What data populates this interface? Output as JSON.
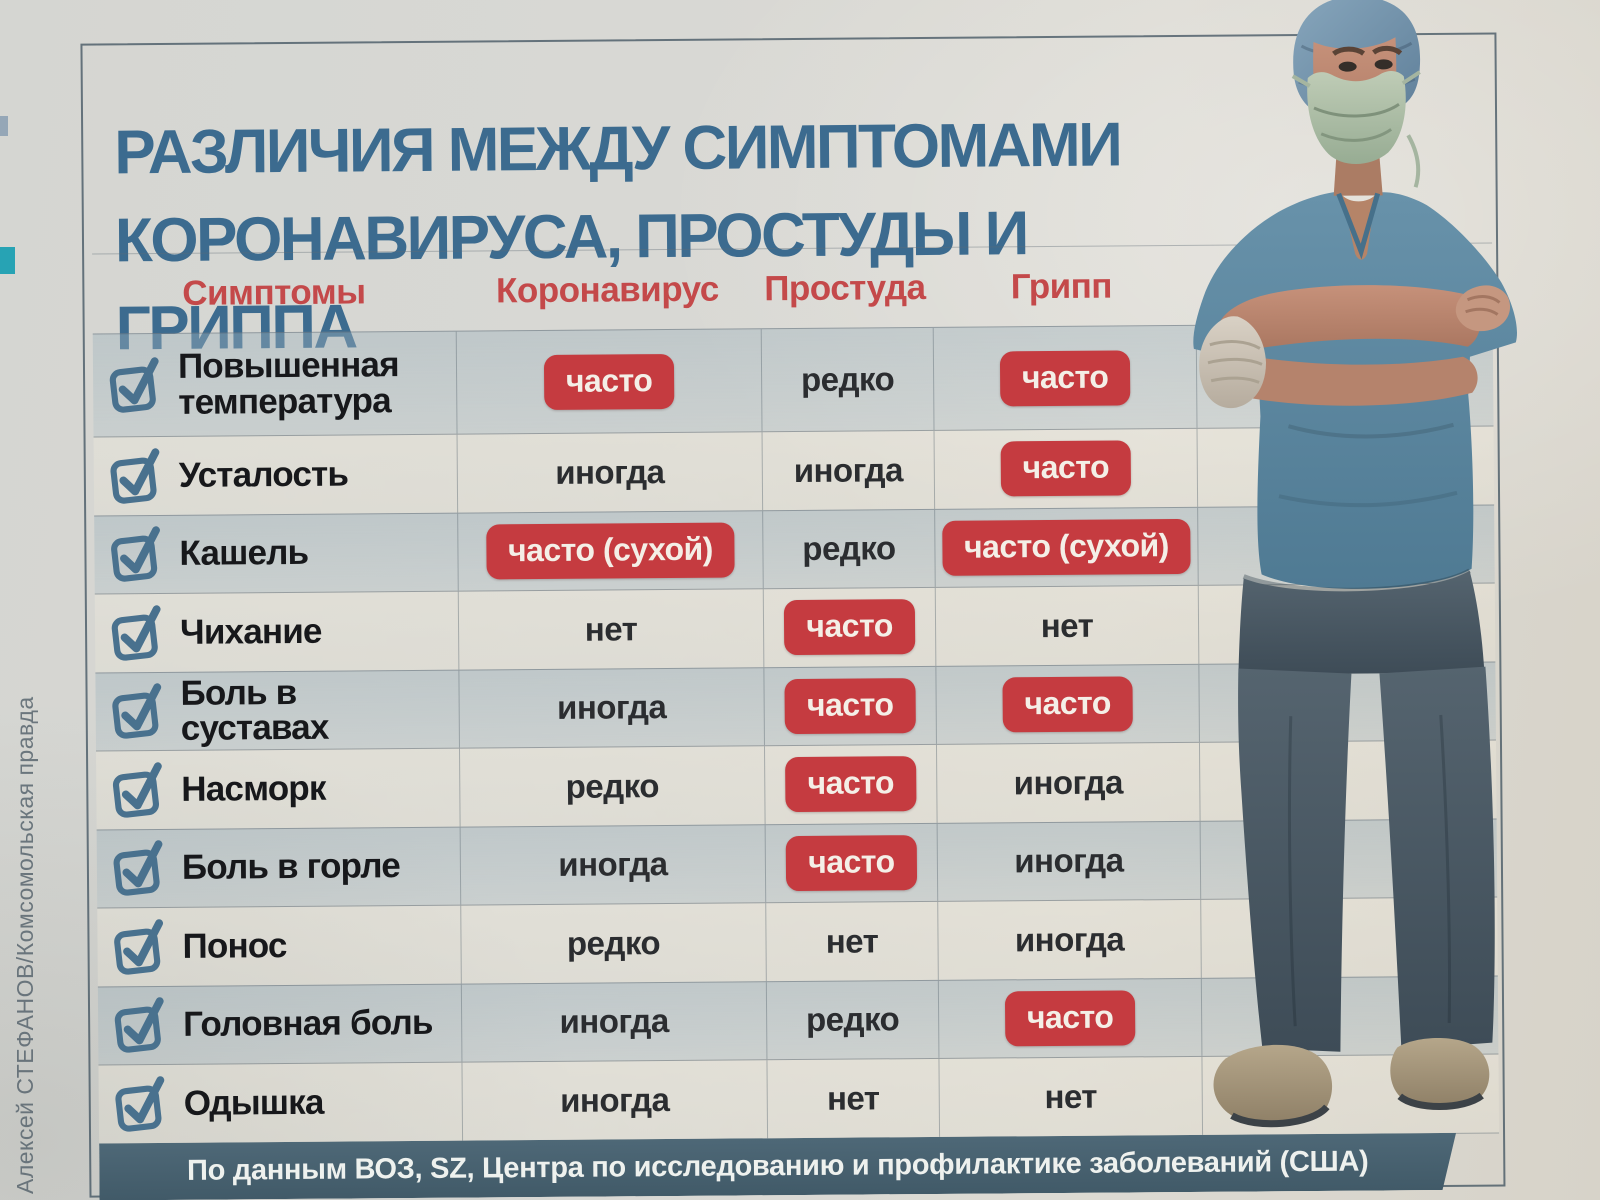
{
  "credit": "Алексей СТЕФАНОВ/Комсомольская правда",
  "title": {
    "line1": "РАЗЛИЧИЯ МЕЖДУ СИМПТОМАМИ",
    "line2": "КОРОНАВИРУСА, ПРОСТУДЫ И ГРИППА"
  },
  "table": {
    "headers": [
      "Симптомы",
      "Коронавирус",
      "Простуда",
      "Грипп"
    ],
    "rows": [
      {
        "symptom": "Повышенная температура",
        "corona": {
          "text": "часто",
          "badge": true
        },
        "cold": {
          "text": "редко",
          "badge": false
        },
        "flu": {
          "text": "часто",
          "badge": true
        }
      },
      {
        "symptom": "Усталость",
        "corona": {
          "text": "иногда",
          "badge": false
        },
        "cold": {
          "text": "иногда",
          "badge": false
        },
        "flu": {
          "text": "часто",
          "badge": true
        }
      },
      {
        "symptom": "Кашель",
        "corona": {
          "text": "часто (сухой)",
          "badge": true
        },
        "cold": {
          "text": "редко",
          "badge": false
        },
        "flu": {
          "text": "часто (сухой)",
          "badge": true
        }
      },
      {
        "symptom": "Чихание",
        "corona": {
          "text": "нет",
          "badge": false
        },
        "cold": {
          "text": "часто",
          "badge": true
        },
        "flu": {
          "text": "нет",
          "badge": false
        }
      },
      {
        "symptom": "Боль в суставах",
        "corona": {
          "text": "иногда",
          "badge": false
        },
        "cold": {
          "text": "часто",
          "badge": true
        },
        "flu": {
          "text": "часто",
          "badge": true
        }
      },
      {
        "symptom": "Насморк",
        "corona": {
          "text": "редко",
          "badge": false
        },
        "cold": {
          "text": "часто",
          "badge": true
        },
        "flu": {
          "text": "иногда",
          "badge": false
        }
      },
      {
        "symptom": "Боль в горле",
        "corona": {
          "text": "иногда",
          "badge": false
        },
        "cold": {
          "text": "часто",
          "badge": true
        },
        "flu": {
          "text": "иногда",
          "badge": false
        }
      },
      {
        "symptom": "Понос",
        "corona": {
          "text": "редко",
          "badge": false
        },
        "cold": {
          "text": "нет",
          "badge": false
        },
        "flu": {
          "text": "иногда",
          "badge": false
        }
      },
      {
        "symptom": "Головная боль",
        "corona": {
          "text": "иногда",
          "badge": false
        },
        "cold": {
          "text": "редко",
          "badge": false
        },
        "flu": {
          "text": "часто",
          "badge": true
        }
      },
      {
        "symptom": "Одышка",
        "corona": {
          "text": "иногда",
          "badge": false
        },
        "cold": {
          "text": "нет",
          "badge": false
        },
        "flu": {
          "text": "нет",
          "badge": false
        }
      }
    ]
  },
  "footer": "По данным ВОЗ, SZ, Центра по исследованию и профилактике заболеваний (США)",
  "icons": {
    "row_marker": "checked-checkbox-icon"
  },
  "colors": {
    "title_blue": "#3c6b8f",
    "header_red": "#c4494a",
    "badge_red": "#c53b40",
    "badge_text": "#f4efe7",
    "footer_bar": "#47606f",
    "checkbox_blue": "#49718e",
    "paper": "#d7d7d2",
    "row_tint": "#c9d2d6"
  }
}
